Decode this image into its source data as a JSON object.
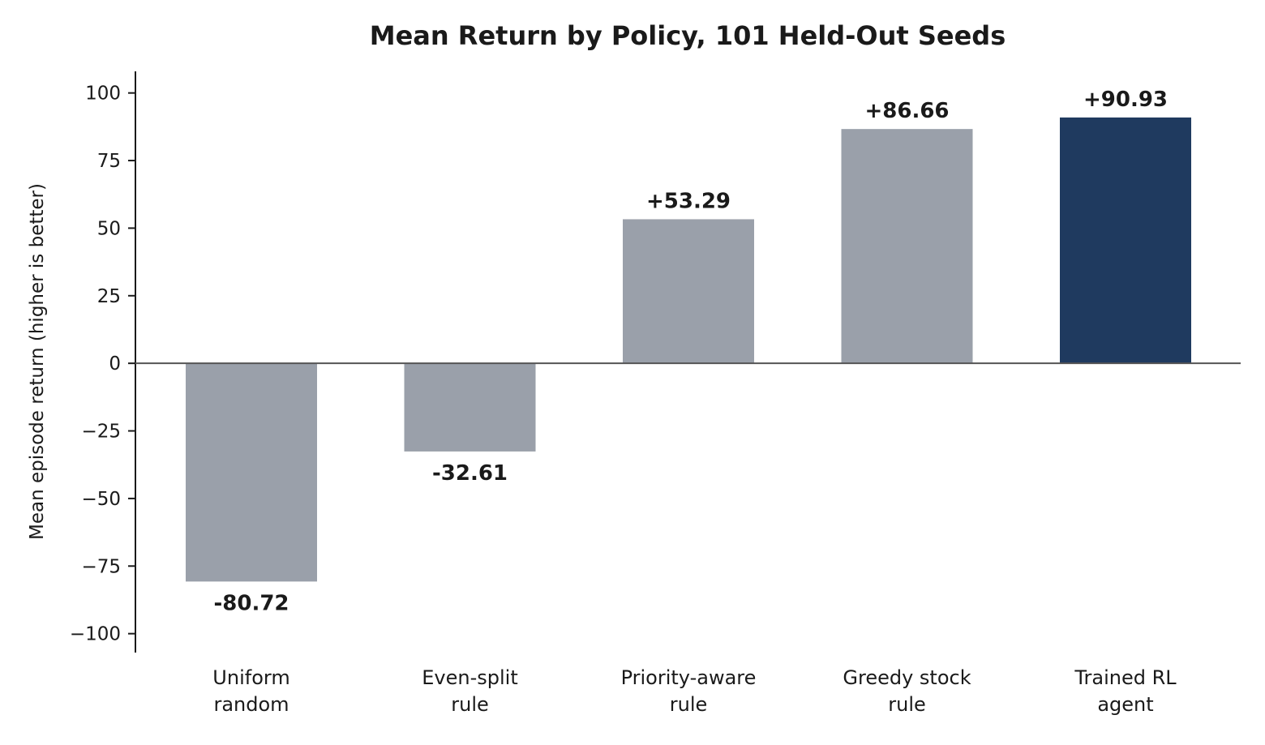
{
  "chart_data": {
    "type": "bar",
    "title": "Mean Return by Policy, 101 Held-Out Seeds",
    "xlabel": "",
    "ylabel": "Mean episode return (higher is better)",
    "ylim": [
      -107,
      108
    ],
    "yticks": [
      100,
      75,
      50,
      25,
      0,
      -25,
      -50,
      -75,
      -100
    ],
    "ytick_labels": [
      "100",
      "75",
      "50",
      "25",
      "0",
      "−25",
      "−50",
      "−75",
      "−100"
    ],
    "categories": [
      [
        "Uniform",
        "random"
      ],
      [
        "Even-split",
        "rule"
      ],
      [
        "Priority-aware",
        "rule"
      ],
      [
        "Greedy stock",
        "rule"
      ],
      [
        "Trained RL",
        "agent"
      ]
    ],
    "values": [
      -80.72,
      -32.61,
      53.29,
      86.66,
      90.93
    ],
    "value_labels": [
      "-80.72",
      "-32.61",
      "+53.29",
      "+86.66",
      "+90.93"
    ],
    "bar_colors": [
      "#9aa0aa",
      "#9aa0aa",
      "#9aa0aa",
      "#9aa0aa",
      "#1f3a5f"
    ],
    "grid": false,
    "legend": "none"
  }
}
